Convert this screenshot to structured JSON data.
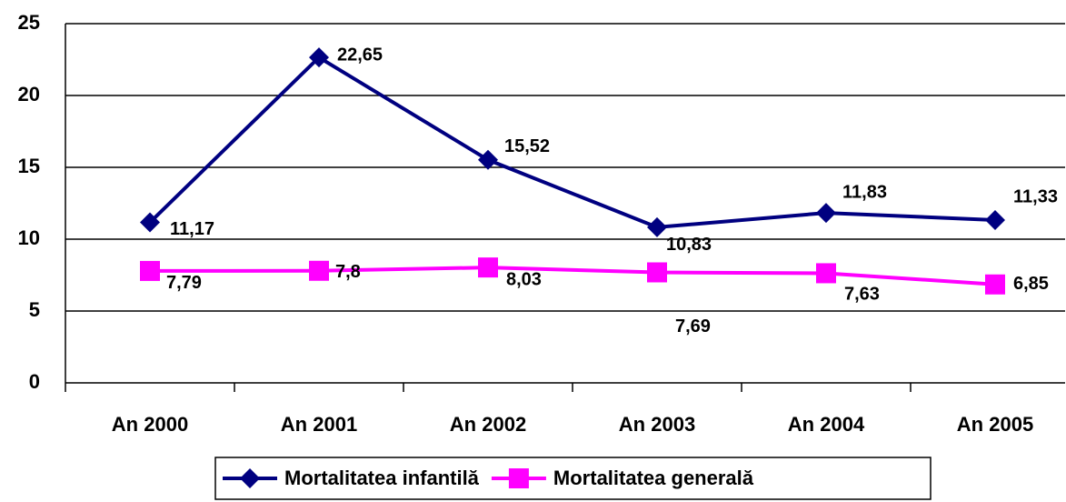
{
  "chart_data": {
    "type": "line",
    "categories": [
      "An 2000",
      "An 2001",
      "An 2002",
      "An 2003",
      "An 2004",
      "An 2005"
    ],
    "series": [
      {
        "name": "Mortalitatea infantilă",
        "color": "#000080",
        "marker": "diamond",
        "values": [
          11.17,
          22.65,
          15.52,
          10.83,
          11.83,
          11.33
        ],
        "value_labels": [
          "11,17",
          "22,65",
          "15,52",
          "10,83",
          "11,83",
          "11,33"
        ]
      },
      {
        "name": "Mortalitatea generală",
        "color": "#ff00ff",
        "marker": "square",
        "values": [
          7.79,
          7.8,
          8.03,
          7.69,
          7.63,
          6.85
        ],
        "value_labels": [
          "7,79",
          "7,8",
          "8,03",
          "7,69",
          "7,63",
          "6,85"
        ]
      }
    ],
    "ylim": [
      0,
      25
    ],
    "yticks": [
      0,
      5,
      10,
      15,
      20,
      25
    ],
    "grid": true,
    "legend": "bottom"
  }
}
